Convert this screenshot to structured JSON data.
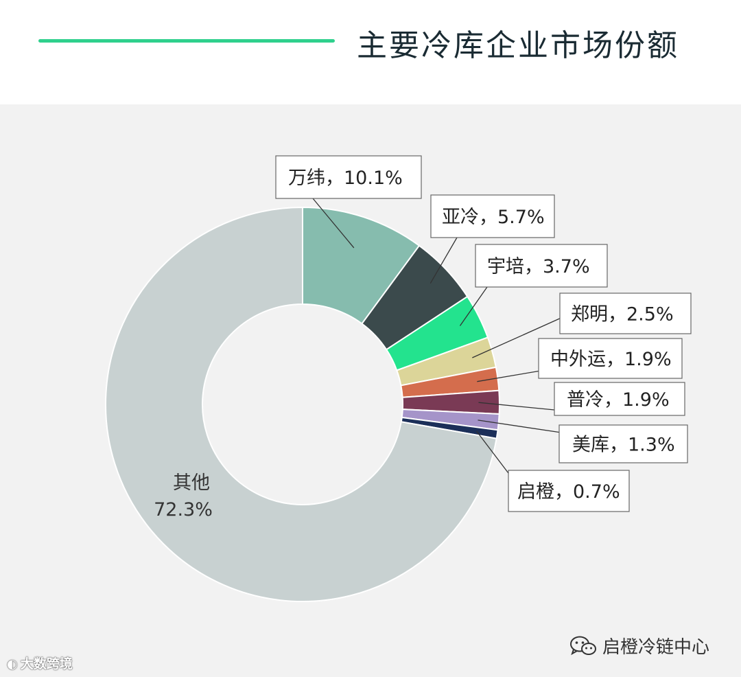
{
  "header": {
    "title": "主要冷库企业市场份额",
    "accent_color": "#2fd08d"
  },
  "chart_data": {
    "type": "pie",
    "variant": "donut",
    "title": "",
    "start": "top, clockwise",
    "slices": [
      {
        "label": "万纬",
        "value": 10.1,
        "display": "万纬，10.1%",
        "color": "#86bcae"
      },
      {
        "label": "亚冷",
        "value": 5.7,
        "display": "亚冷，5.7%",
        "color": "#3b4a4c"
      },
      {
        "label": "宇培",
        "value": 3.7,
        "display": "宇培，3.7%",
        "color": "#23e38e"
      },
      {
        "label": "郑明",
        "value": 2.5,
        "display": "郑明，2.5%",
        "color": "#dcd599"
      },
      {
        "label": "中外运",
        "value": 1.9,
        "display": "中外运，1.9%",
        "color": "#d46d4d"
      },
      {
        "label": "普冷",
        "value": 1.9,
        "display": "普冷，1.9%",
        "color": "#7a3a55"
      },
      {
        "label": "美库",
        "value": 1.3,
        "display": "美库，1.3%",
        "color": "#a594c9"
      },
      {
        "label": "启橙",
        "value": 0.7,
        "display": "启橙，0.7%",
        "color": "#1b2f59"
      },
      {
        "label": "其他",
        "value": 72.3,
        "display_line1": "其他",
        "display_line2": "72.3%",
        "color": "#c8d1d1"
      }
    ]
  },
  "watermarks": {
    "left_icon": "weibo-icon",
    "left_text": "大数跨境",
    "right_icon": "wechat-icon",
    "right_text": "启橙冷链中心"
  }
}
